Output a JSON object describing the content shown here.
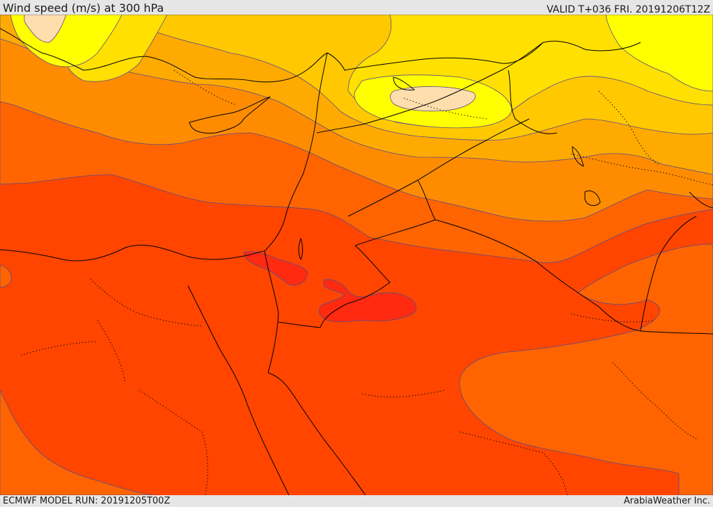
{
  "header": {
    "title": "Wind speed (m/s) at 300 hPa",
    "valid_time": "VALID T+036 FRI. 20191206T12Z"
  },
  "footer": {
    "model_run": "ECMWF MODEL RUN: 20191205T00Z",
    "credit": "ArabiaWeather Inc."
  },
  "colors": {
    "band_very_strong": "#ff2a10",
    "band_strong": "#ff4500",
    "band_moderate_high": "#ff6400",
    "band_moderate": "#ff8c00",
    "band_mid": "#ffaa00",
    "band_light": "#ffc800",
    "band_lighter": "#ffe000",
    "band_weak": "#ffff00",
    "band_calm": "#ffdead",
    "contour_line": "#5a4a8a",
    "border_line": "#000000"
  }
}
